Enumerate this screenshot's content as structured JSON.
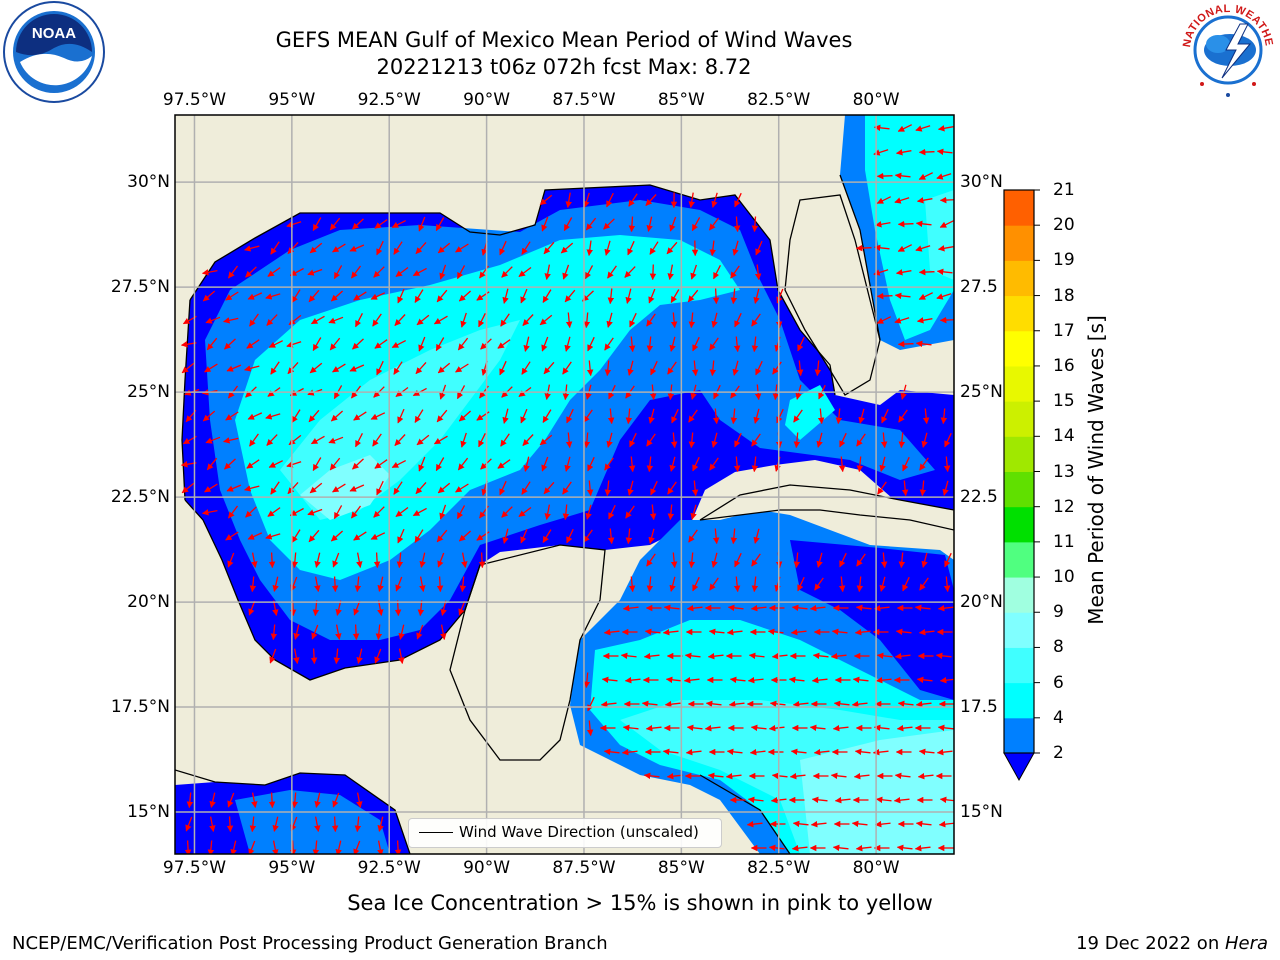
{
  "title": {
    "line1": "GEFS MEAN Gulf of Mexico Mean Period of Wind Waves",
    "line2": "20221213 t06z 072h fcst   Max: 8.72"
  },
  "logos": {
    "left": {
      "icon": "noaa-logo",
      "text": "NOAA"
    },
    "right": {
      "icon": "national-weather-service-logo",
      "text": "NATIONAL WEATHER SERVICE"
    }
  },
  "axes": {
    "lon_ticks": [
      "97.5°W",
      "95°W",
      "92.5°W",
      "90°W",
      "87.5°W",
      "85°W",
      "82.5°W",
      "80°W"
    ],
    "lon_values": [
      -97.5,
      -95,
      -92.5,
      -90,
      -87.5,
      -85,
      -82.5,
      -80
    ],
    "lat_ticks_left": [
      "30°N",
      "27.5°N",
      "25°N",
      "22.5°N",
      "20°N",
      "17.5°N",
      "15°N"
    ],
    "lat_ticks_right": [
      "30°N",
      "27.5",
      "25°N",
      "22.5",
      "20°N",
      "17.5",
      "15°N"
    ],
    "lat_values": [
      30,
      27.5,
      25,
      22.5,
      20,
      17.5,
      15
    ],
    "lon_range": [
      -98,
      -78
    ],
    "lat_range": [
      14,
      31.6
    ],
    "grid": true
  },
  "colorbar": {
    "label": "Mean Period of Wind Waves [s]",
    "ticks": [
      "2",
      "4",
      "6",
      "8",
      "9",
      "10",
      "11",
      "12",
      "13",
      "14",
      "15",
      "16",
      "17",
      "18",
      "19",
      "20",
      "21"
    ],
    "colors": [
      "#0080ff",
      "#00ffff",
      "#40ffff",
      "#80ffff",
      "#a0ffe0",
      "#50ff80",
      "#00e000",
      "#60e000",
      "#a0e800",
      "#ccf000",
      "#e8f800",
      "#ffff00",
      "#ffdd00",
      "#ffbb00",
      "#ff9000",
      "#ff6000",
      "#ff3000",
      "#ff0000"
    ],
    "under_color": "#0000ff"
  },
  "colors": {
    "land": "#efedda",
    "ocean_low": "#0000ff",
    "ocean_mid": "#0080ff",
    "ocean_high": "#00ffff",
    "ocean_peak": "#80ffff",
    "arrow": "#ff0000"
  },
  "legend": {
    "label": "Wind Wave Direction (unscaled)"
  },
  "note": "Sea Ice Concentration > 15% is shown in pink to yellow",
  "footer": {
    "left": "NCEP/EMC/Verification Post Processing Product Generation Branch",
    "right_prefix": "19 Dec 2022 on ",
    "right_machine": "Hera"
  }
}
